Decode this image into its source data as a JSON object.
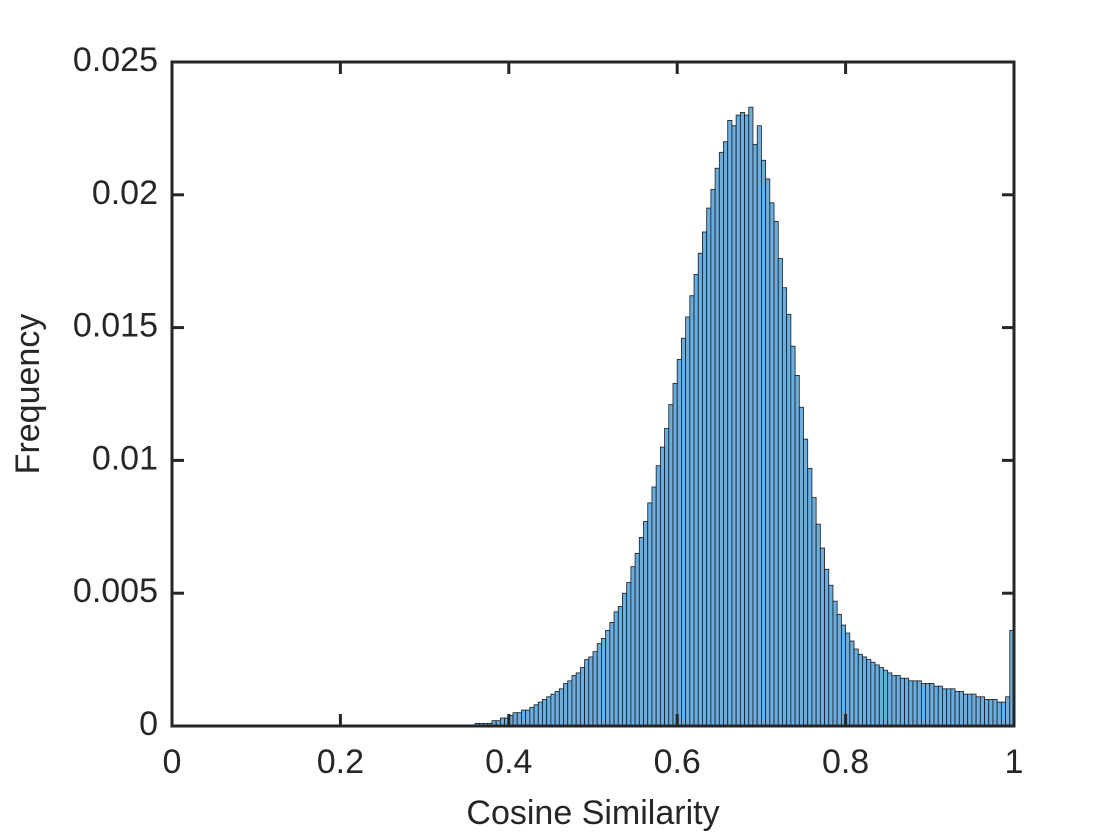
{
  "chart_data": {
    "type": "histogram",
    "xlabel": "Cosine Similarity",
    "ylabel": "Frequency",
    "xlim": [
      0,
      1
    ],
    "ylim": [
      0,
      0.025
    ],
    "xticks": [
      0,
      0.2,
      0.4,
      0.6,
      0.8,
      1
    ],
    "yticks": [
      0,
      0.005,
      0.01,
      0.015,
      0.02,
      0.025
    ],
    "color": "#6aaee0",
    "edgecolor": "#1a1a1a",
    "bins": [
      0.36,
      0.365,
      0.37,
      0.375,
      0.38,
      0.385,
      0.39,
      0.395,
      0.4,
      0.405,
      0.41,
      0.415,
      0.42,
      0.425,
      0.43,
      0.435,
      0.44,
      0.445,
      0.45,
      0.455,
      0.46,
      0.465,
      0.47,
      0.475,
      0.48,
      0.485,
      0.49,
      0.495,
      0.5,
      0.505,
      0.51,
      0.515,
      0.52,
      0.525,
      0.53,
      0.535,
      0.54,
      0.545,
      0.55,
      0.555,
      0.56,
      0.565,
      0.57,
      0.575,
      0.58,
      0.585,
      0.59,
      0.595,
      0.6,
      0.605,
      0.61,
      0.615,
      0.62,
      0.625,
      0.63,
      0.635,
      0.64,
      0.645,
      0.65,
      0.655,
      0.66,
      0.665,
      0.67,
      0.675,
      0.68,
      0.685,
      0.69,
      0.695,
      0.7,
      0.705,
      0.71,
      0.715,
      0.72,
      0.725,
      0.73,
      0.735,
      0.74,
      0.745,
      0.75,
      0.755,
      0.76,
      0.765,
      0.77,
      0.775,
      0.78,
      0.785,
      0.79,
      0.795,
      0.8,
      0.805,
      0.81,
      0.815,
      0.82,
      0.825,
      0.83,
      0.835,
      0.84,
      0.845,
      0.85,
      0.855,
      0.86,
      0.865,
      0.87,
      0.875,
      0.88,
      0.885,
      0.89,
      0.895,
      0.9,
      0.905,
      0.91,
      0.915,
      0.92,
      0.925,
      0.93,
      0.935,
      0.94,
      0.945,
      0.95,
      0.955,
      0.96,
      0.965,
      0.97,
      0.975,
      0.98,
      0.985,
      0.99,
      0.995,
      1
    ],
    "values": [
      0.0001,
      0.0001,
      0.0001,
      0.0001,
      0.0002,
      0.0002,
      0.0003,
      0.0003,
      0.0004,
      0.0005,
      0.0005,
      0.0006,
      0.0006,
      0.0007,
      0.0008,
      0.0009,
      0.001,
      0.0011,
      0.0012,
      0.0013,
      0.0014,
      0.0016,
      0.0017,
      0.0019,
      0.002,
      0.0022,
      0.0025,
      0.0026,
      0.0028,
      0.0031,
      0.0033,
      0.0036,
      0.0039,
      0.0043,
      0.0045,
      0.005,
      0.0054,
      0.006,
      0.0065,
      0.0071,
      0.0077,
      0.0084,
      0.009,
      0.0098,
      0.0105,
      0.0112,
      0.0121,
      0.0129,
      0.0138,
      0.0146,
      0.0154,
      0.0162,
      0.017,
      0.0178,
      0.0186,
      0.0195,
      0.0202,
      0.021,
      0.0216,
      0.022,
      0.0228,
      0.0226,
      0.023,
      0.0231,
      0.023,
      0.0233,
      0.0219,
      0.0226,
      0.0213,
      0.0206,
      0.0197,
      0.019,
      0.0176,
      0.0165,
      0.0155,
      0.0143,
      0.0132,
      0.012,
      0.0108,
      0.0097,
      0.0086,
      0.0076,
      0.0067,
      0.0059,
      0.0053,
      0.0047,
      0.0042,
      0.0038,
      0.0035,
      0.0032,
      0.0029,
      0.0027,
      0.0026,
      0.0025,
      0.0024,
      0.0023,
      0.0022,
      0.0021,
      0.002,
      0.0019,
      0.0019,
      0.0018,
      0.0018,
      0.0017,
      0.0017,
      0.0017,
      0.0016,
      0.0016,
      0.0016,
      0.0015,
      0.0015,
      0.0014,
      0.0014,
      0.0014,
      0.0013,
      0.0013,
      0.0012,
      0.0012,
      0.0012,
      0.0011,
      0.0011,
      0.001,
      0.001,
      0.001,
      0.0009,
      0.0009,
      0.0011,
      0.0036
    ]
  }
}
